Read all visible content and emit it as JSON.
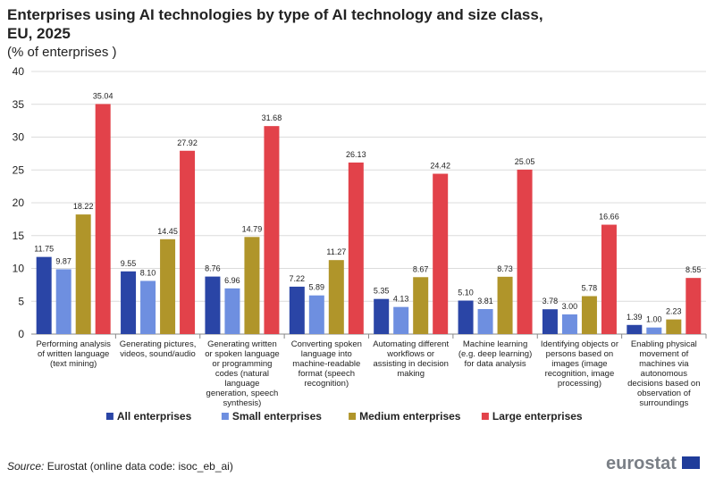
{
  "chart_data": {
    "type": "bar",
    "title": "Enterprises using AI technologies by type of AI technology and size class, EU, 2025",
    "subtitle": "(% of enterprises )",
    "categories": [
      "Performing analysis of written language (text mining)",
      "Generating pictures, videos, sound/audio",
      "Generating written or spoken language or programming codes (natural language generation, speech synthesis)",
      "Converting spoken language into machine-readable format (speech recognition)",
      "Automating different workflows or assisting in decision making",
      "Machine learning (e.g. deep learning) for data analysis",
      "Identifying objects or persons based on images (image recognition, image processing)",
      "Enabling physical movement of machines via autonomous decisions based on observation of surroundings"
    ],
    "series": [
      {
        "name": "All enterprises",
        "color": "#2a45a6",
        "values": [
          11.75,
          9.55,
          8.76,
          7.22,
          5.35,
          5.1,
          3.78,
          1.39
        ],
        "value_labels": [
          "11.75",
          "9.55",
          "8.76",
          "7.22",
          "5.35",
          "5.10",
          "3.78",
          "1.39"
        ]
      },
      {
        "name": "Small enterprises",
        "color": "#6e8fe0",
        "values": [
          9.87,
          8.1,
          6.96,
          5.89,
          4.13,
          3.81,
          3.0,
          1.0
        ],
        "value_labels": [
          "9.87",
          "8.10",
          "6.96",
          "5.89",
          "4.13",
          "3.81",
          "3.00",
          "1.00"
        ]
      },
      {
        "name": "Medium enterprises",
        "color": "#b0952a",
        "values": [
          18.22,
          14.45,
          14.79,
          11.27,
          8.67,
          8.73,
          5.78,
          2.23
        ],
        "value_labels": [
          "18.22",
          "14.45",
          "14.79",
          "11.27",
          "8.67",
          "8.73",
          "5.78",
          "2.23"
        ]
      },
      {
        "name": "Large enterprises",
        "color": "#e2424a",
        "values": [
          35.04,
          27.92,
          31.68,
          26.13,
          24.42,
          25.05,
          16.66,
          8.55
        ],
        "value_labels": [
          "35.04",
          "27.92",
          "31.68",
          "26.13",
          "24.42",
          "25.05",
          "16.66",
          "8.55"
        ]
      }
    ],
    "ylim": [
      0,
      40
    ],
    "yticks": [
      0,
      5,
      10,
      15,
      20,
      25,
      30,
      35,
      40
    ],
    "grid": true,
    "legend": "bottom",
    "source_label": "Source:",
    "source_text": "Eurostat (online data code: isoc_eb_ai)",
    "logo": "eurostat"
  }
}
